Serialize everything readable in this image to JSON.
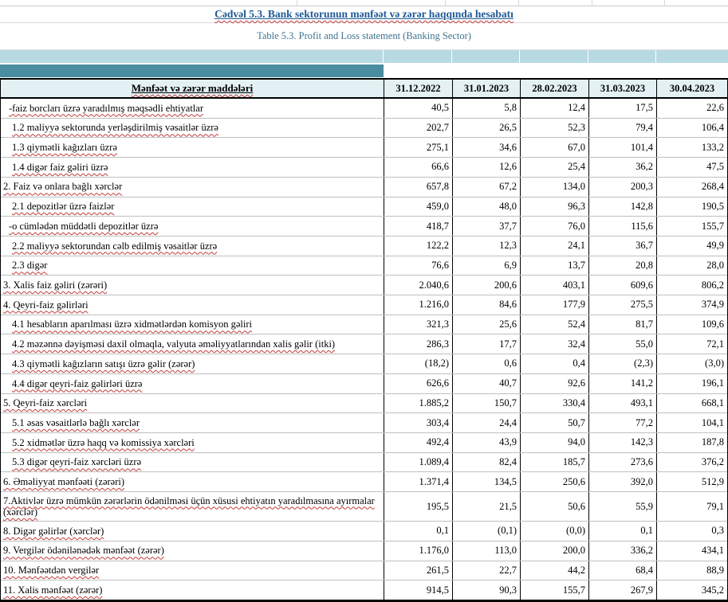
{
  "title": "Cədvəl 5.3. Bank sektorunun mənfəət və zərər haqqında hesabatı",
  "subtitle": "Table 5.3. Profit and Loss statement (Banking Sector)",
  "colors": {
    "title_blue": "#1f5a96",
    "subtitle_teal": "#3d7390",
    "band_light_blue": "#b7d9e3",
    "band_teal": "#4a8da0",
    "header_bg": "#e3f1f4",
    "spellcheck_red": "#c03a3a"
  },
  "table": {
    "header": {
      "items_label": "Mənfəət və zərər maddələri",
      "date_columns": [
        "31.12.2022",
        "31.01.2023",
        "28.02.2023",
        "31.03.2023",
        "30.04.2023"
      ]
    },
    "rows": [
      {
        "label": "-faiz borcları üzrə yaradılmış məqsədli ehtiyatlar",
        "indent": "dash",
        "values": [
          "40,5",
          "5,8",
          "12,4",
          "17,5",
          "22,6"
        ]
      },
      {
        "label": "1.2 maliyyə sektorunda yerləşdirilmiş vəsaitlər üzrə",
        "indent": "sub",
        "values": [
          "202,7",
          "26,5",
          "52,3",
          "79,4",
          "106,4"
        ]
      },
      {
        "label": "1.3 qiymətli kağızları üzrə",
        "indent": "sub",
        "values": [
          "275,1",
          "34,6",
          "67,0",
          "101,4",
          "133,2"
        ]
      },
      {
        "label": "1.4 digər faiz gəliri üzrə",
        "indent": "sub",
        "values": [
          "66,6",
          "12,6",
          "25,4",
          "36,2",
          "47,5"
        ]
      },
      {
        "label": "2. Faiz və onlara bağlı xərclər",
        "indent": "main",
        "values": [
          "657,8",
          "67,2",
          "134,0",
          "200,3",
          "268,4"
        ]
      },
      {
        "label": "2.1 depozitlər üzrə faizlər",
        "indent": "sub",
        "values": [
          "459,0",
          "48,0",
          "96,3",
          "142,8",
          "190,5"
        ]
      },
      {
        "label": "-o cümlədən müddətli depozitlər üzrə",
        "indent": "dash",
        "values": [
          "418,7",
          "37,7",
          "76,0",
          "115,6",
          "155,7"
        ]
      },
      {
        "label": "2.2 maliyyə sektorundan cəlb edilmiş vəsaitlər üzrə",
        "indent": "sub",
        "values": [
          "122,2",
          "12,3",
          "24,1",
          "36,7",
          "49,9"
        ]
      },
      {
        "label": "2.3 digər",
        "indent": "sub",
        "values": [
          "76,6",
          "6,9",
          "13,7",
          "20,8",
          "28,0"
        ]
      },
      {
        "label": "3. Xalis faiz gəliri (zərəri)",
        "indent": "main",
        "values": [
          "2.040,6",
          "200,6",
          "403,1",
          "609,6",
          "806,2"
        ]
      },
      {
        "label": "4. Qeyri-faiz gəlirləri",
        "indent": "main",
        "values": [
          "1.216,0",
          "84,6",
          "177,9",
          "275,5",
          "374,9"
        ]
      },
      {
        "label": "4.1 hesabların aparılması üzrə xidmətlərdən komisyon gəliri",
        "indent": "sub",
        "values": [
          "321,3",
          "25,6",
          "52,4",
          "81,7",
          "109,6"
        ]
      },
      {
        "label": "4.2 məzənnə dəyişməsi daxil olmaqla, valyuta əməliyyatlarından xalis gəlir (itki)",
        "indent": "sub",
        "values": [
          "286,3",
          "17,7",
          "32,4",
          "55,0",
          "72,1"
        ]
      },
      {
        "label": "4.3 qiymətli kağızların satışı üzrə gəlir (zərər)",
        "indent": "sub",
        "values": [
          "(18,2)",
          "0,6",
          "0,4",
          "(2,3)",
          "(3,0)"
        ]
      },
      {
        "label": "4.4 digər qeyri-faiz gəlirləri üzrə",
        "indent": "sub",
        "values": [
          "626,6",
          "40,7",
          "92,6",
          "141,2",
          "196,1"
        ]
      },
      {
        "label": "5. Qeyri-faiz xərcləri",
        "indent": "main",
        "values": [
          "1.885,2",
          "150,7",
          "330,4",
          "493,1",
          "668,1"
        ]
      },
      {
        "label": "5.1 əsas vəsaitlərlə bağlı xərclər",
        "indent": "sub",
        "values": [
          "303,4",
          "24,4",
          "50,7",
          "77,2",
          "104,1"
        ]
      },
      {
        "label": "5.2 xidmətlər üzrə haqq və komissiya xərcləri",
        "indent": "sub",
        "values": [
          "492,4",
          "43,9",
          "94,0",
          "142,3",
          "187,8"
        ]
      },
      {
        "label": "5.3 digər qeyri-faiz xərcləri üzrə",
        "indent": "sub",
        "values": [
          "1.089,4",
          "82,4",
          "185,7",
          "273,6",
          "376,2"
        ]
      },
      {
        "label": "6. Əməliyyat mənfəəti (zərəri)",
        "indent": "main",
        "values": [
          "1.371,4",
          "134,5",
          "250,6",
          "392,0",
          "512,9"
        ]
      },
      {
        "label": "7.Aktivlər üzrə mümkün zərərlərin ödənilməsi üçün xüsusi ehtiyatın yaradılmasına ayırmalar (xərclər)",
        "indent": "main",
        "tall": true,
        "values": [
          "195,5",
          "21,5",
          "50,6",
          "55,9",
          "79,1"
        ]
      },
      {
        "label": "8. Digər gəlirlər (xərclər)",
        "indent": "main",
        "values": [
          "0,1",
          "(0,1)",
          "(0,0)",
          "0,1",
          "0,3"
        ]
      },
      {
        "label": "9. Vergilər ödənilənədək mənfəət (zərər)",
        "indent": "main",
        "values": [
          "1.176,0",
          "113,0",
          "200,0",
          "336,2",
          "434,1"
        ]
      },
      {
        "label": "10. Mənfəətdən vergilər",
        "indent": "main",
        "values": [
          "261,5",
          "22,7",
          "44,2",
          "68,4",
          "88,9"
        ]
      },
      {
        "label": "11. Xalis mənfəət (zərər)",
        "indent": "main",
        "values": [
          "914,5",
          "90,3",
          "155,7",
          "267,9",
          "345,2"
        ]
      }
    ]
  }
}
